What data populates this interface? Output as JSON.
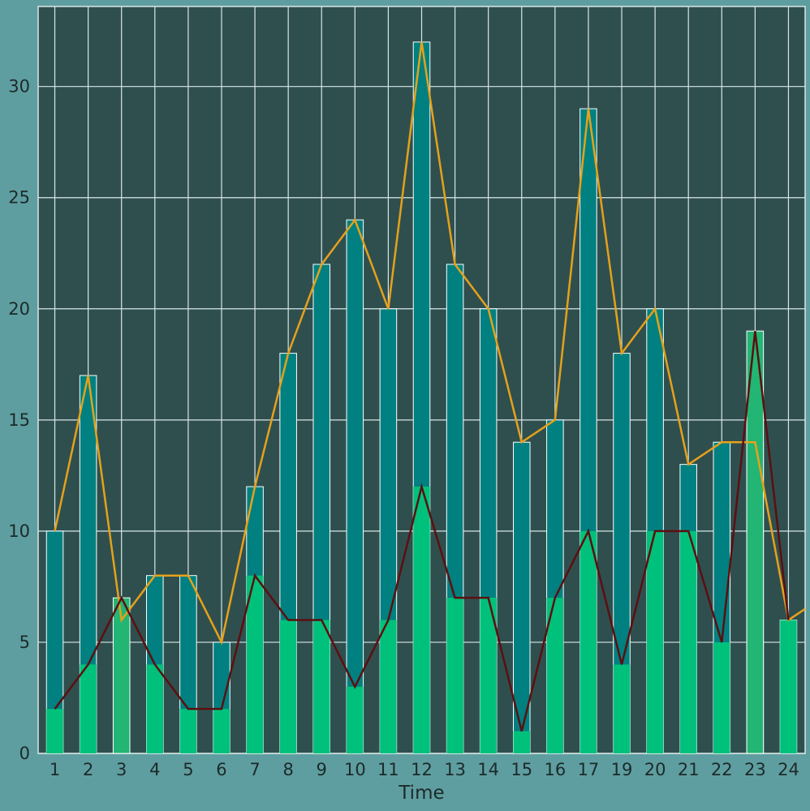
{
  "colors": {
    "page_background": "#5f9ea0",
    "plot_background": "#2f4f4f",
    "grid": "#d9e6e6",
    "bar_total": "#008080",
    "bar_part": "#00c17c",
    "bar_part_highlight": "#22b573",
    "bar_edge": "#ffffff",
    "line_total": "#e6a11a",
    "line_part": "#5c0f0f"
  },
  "chart_data": {
    "type": "bar",
    "xlabel": "Time",
    "ylabel": "",
    "title": "",
    "ylim": [
      0,
      33.6
    ],
    "yticks": [
      0,
      5,
      10,
      15,
      20,
      25,
      30
    ],
    "grid": true,
    "categories": [
      "1",
      "2",
      "3",
      "4",
      "5",
      "6",
      "7",
      "8",
      "9",
      "10",
      "11",
      "12",
      "13",
      "14",
      "15",
      "16",
      "17",
      "19",
      "20",
      "21",
      "22",
      "23",
      "24"
    ],
    "series": [
      {
        "kind": "bar",
        "values": [
          10,
          17,
          6,
          8,
          8,
          5,
          12,
          18,
          22,
          24,
          20,
          32,
          22,
          20,
          14,
          15,
          29,
          18,
          20,
          13,
          14,
          14,
          6
        ]
      },
      {
        "kind": "bar",
        "values": [
          2,
          4,
          7,
          4,
          2,
          2,
          8,
          6,
          6,
          3,
          6,
          12,
          7,
          7,
          1,
          7,
          10,
          4,
          10,
          10,
          5,
          19,
          6
        ]
      },
      {
        "kind": "line",
        "values": [
          10,
          17,
          6,
          8,
          8,
          5,
          12,
          18,
          22,
          24,
          20,
          32,
          22,
          20,
          14,
          15,
          29,
          18,
          20,
          13,
          14,
          14,
          6
        ],
        "extra_end_value": 7
      },
      {
        "kind": "line",
        "values": [
          2,
          4,
          7,
          4,
          2,
          2,
          8,
          6,
          6,
          3,
          6,
          12,
          7,
          7,
          1,
          7,
          10,
          4,
          10,
          10,
          5,
          19,
          6
        ]
      }
    ]
  }
}
